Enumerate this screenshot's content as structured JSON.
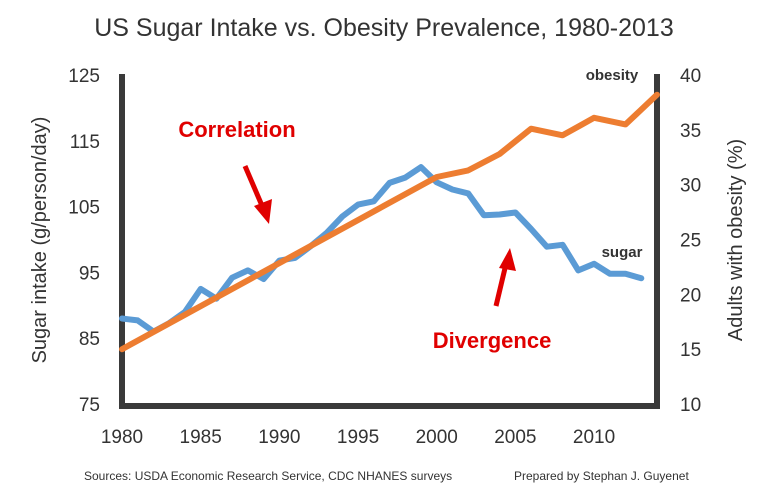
{
  "chart_data": {
    "type": "line",
    "title": "US Sugar Intake vs. Obesity Prevalence, 1980-2013",
    "xlabel": "",
    "ylabel_left": "Sugar intake (g/person/day)",
    "ylabel_right": "Adults with obesity (%)",
    "xlim": [
      1980,
      2014
    ],
    "ylim_left": [
      75,
      125
    ],
    "ylim_right": [
      10,
      40
    ],
    "x_ticks": [
      "1980",
      "1985",
      "1990",
      "1995",
      "2000",
      "2005",
      "2010"
    ],
    "y_left_ticks": [
      "75",
      "85",
      "95",
      "105",
      "115",
      "125"
    ],
    "y_right_ticks": [
      "10",
      "15",
      "20",
      "25",
      "30",
      "35",
      "40"
    ],
    "grid": false,
    "series": [
      {
        "name": "sugar",
        "axis": "left",
        "color": "#5b9bd5",
        "x": [
          1980,
          1981,
          1982,
          1983,
          1984,
          1985,
          1986,
          1987,
          1988,
          1989,
          1990,
          1991,
          1992,
          1993,
          1994,
          1995,
          1996,
          1997,
          1998,
          1999,
          2000,
          2001,
          2002,
          2003,
          2004,
          2005,
          2006,
          2007,
          2008,
          2009,
          2010,
          2011,
          2012,
          2013
        ],
        "values": [
          88,
          87.7,
          86,
          87.3,
          89,
          92.5,
          91,
          94.2,
          95.3,
          94,
          96.8,
          97.2,
          99,
          101,
          103.5,
          105.3,
          105.8,
          108.6,
          109.4,
          111,
          108.7,
          107.6,
          107,
          103.7,
          103.8,
          104.1,
          101.6,
          98.9,
          99.2,
          95.3,
          96.3,
          94.8,
          94.8,
          94.1
        ]
      },
      {
        "name": "obesity",
        "axis": "right",
        "color": "#ed7d31",
        "x": [
          1980,
          2000,
          2002,
          2004,
          2006,
          2008,
          2010,
          2012,
          2014
        ],
        "values": [
          15,
          30.7,
          31.3,
          32.8,
          35.1,
          34.5,
          36.1,
          35.5,
          38.2
        ]
      }
    ],
    "series_labels": {
      "obesity": "obesity",
      "sugar": "sugar"
    },
    "annotations": [
      {
        "text": "Correlation",
        "color": "#e00000"
      },
      {
        "text": "Divergence",
        "color": "#e00000"
      }
    ]
  },
  "footer": {
    "sources": "Sources: USDA Economic Research Service, CDC NHANES surveys",
    "credit": "Prepared by Stephan J. Guyenet"
  }
}
